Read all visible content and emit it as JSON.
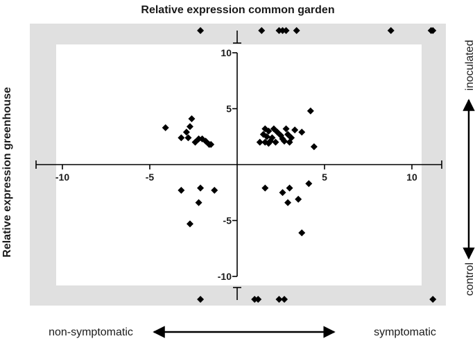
{
  "chart_data": {
    "type": "scatter",
    "title": "Relative expression common garden",
    "xlabel": "",
    "ylabel": "Relative  expression greenhouse",
    "xlim": [
      -10,
      10
    ],
    "ylim": [
      -10,
      10
    ],
    "x_ticks": [
      -10,
      -5,
      5,
      10
    ],
    "y_ticks": [
      10,
      5,
      -5,
      -10
    ],
    "x_tick_labels": [
      "-10",
      "-5",
      "5",
      "10"
    ],
    "y_tick_labels": [
      "10",
      "5",
      "-5",
      "-10"
    ],
    "grid": false,
    "background_band_color": "#e0e0e0",
    "marker": "diamond",
    "marker_color": "#000000",
    "points": [
      {
        "x": -4.1,
        "y": 3.3
      },
      {
        "x": -2.6,
        "y": 4.1
      },
      {
        "x": -2.7,
        "y": 3.4
      },
      {
        "x": -2.9,
        "y": 2.9
      },
      {
        "x": -3.2,
        "y": 2.4
      },
      {
        "x": -2.8,
        "y": 2.4
      },
      {
        "x": -2.2,
        "y": 2.3
      },
      {
        "x": -2.0,
        "y": 2.3
      },
      {
        "x": -1.8,
        "y": 2.1
      },
      {
        "x": -1.5,
        "y": 1.8
      },
      {
        "x": -2.4,
        "y": 2.0
      },
      {
        "x": -1.6,
        "y": 1.8
      },
      {
        "x": -3.2,
        "y": -2.3
      },
      {
        "x": -2.1,
        "y": -2.1
      },
      {
        "x": -1.3,
        "y": -2.3
      },
      {
        "x": -2.2,
        "y": -3.4
      },
      {
        "x": -2.7,
        "y": -5.3
      },
      {
        "x": 1.6,
        "y": 3.2
      },
      {
        "x": 1.8,
        "y": 3.0
      },
      {
        "x": 2.1,
        "y": 3.2
      },
      {
        "x": 1.5,
        "y": 2.7
      },
      {
        "x": 1.7,
        "y": 2.5
      },
      {
        "x": 2.0,
        "y": 2.4
      },
      {
        "x": 2.3,
        "y": 2.9
      },
      {
        "x": 2.5,
        "y": 2.6
      },
      {
        "x": 2.8,
        "y": 3.2
      },
      {
        "x": 2.9,
        "y": 2.7
      },
      {
        "x": 3.1,
        "y": 2.4
      },
      {
        "x": 3.3,
        "y": 3.1
      },
      {
        "x": 3.7,
        "y": 2.9
      },
      {
        "x": 1.3,
        "y": 2.0
      },
      {
        "x": 1.6,
        "y": 2.0
      },
      {
        "x": 1.9,
        "y": 2.1
      },
      {
        "x": 2.2,
        "y": 2.0
      },
      {
        "x": 2.6,
        "y": 2.3
      },
      {
        "x": 3.0,
        "y": 2.0
      },
      {
        "x": 2.7,
        "y": 2.1
      },
      {
        "x": 4.2,
        "y": 4.8
      },
      {
        "x": 4.4,
        "y": 1.6
      },
      {
        "x": 1.8,
        "y": 1.9
      },
      {
        "x": 1.6,
        "y": -2.1
      },
      {
        "x": 2.6,
        "y": -2.5
      },
      {
        "x": 3.0,
        "y": -2.1
      },
      {
        "x": 4.1,
        "y": -1.7
      },
      {
        "x": 2.9,
        "y": -3.4
      },
      {
        "x": 3.5,
        "y": -3.1
      },
      {
        "x": 3.7,
        "y": -6.1
      }
    ],
    "points_out_of_range_top": [
      -2.1,
      1.4,
      2.4,
      2.6,
      2.8,
      3.4,
      8.8,
      11.1,
      11.2
    ],
    "points_out_of_range_bottom": [
      -2.1,
      1.0,
      1.2,
      2.4,
      2.7,
      11.2
    ],
    "annotations": {
      "x_left": "non-symptomatic",
      "x_right": "symptomatic",
      "y_top": "inoculated",
      "y_bottom": "control"
    }
  }
}
